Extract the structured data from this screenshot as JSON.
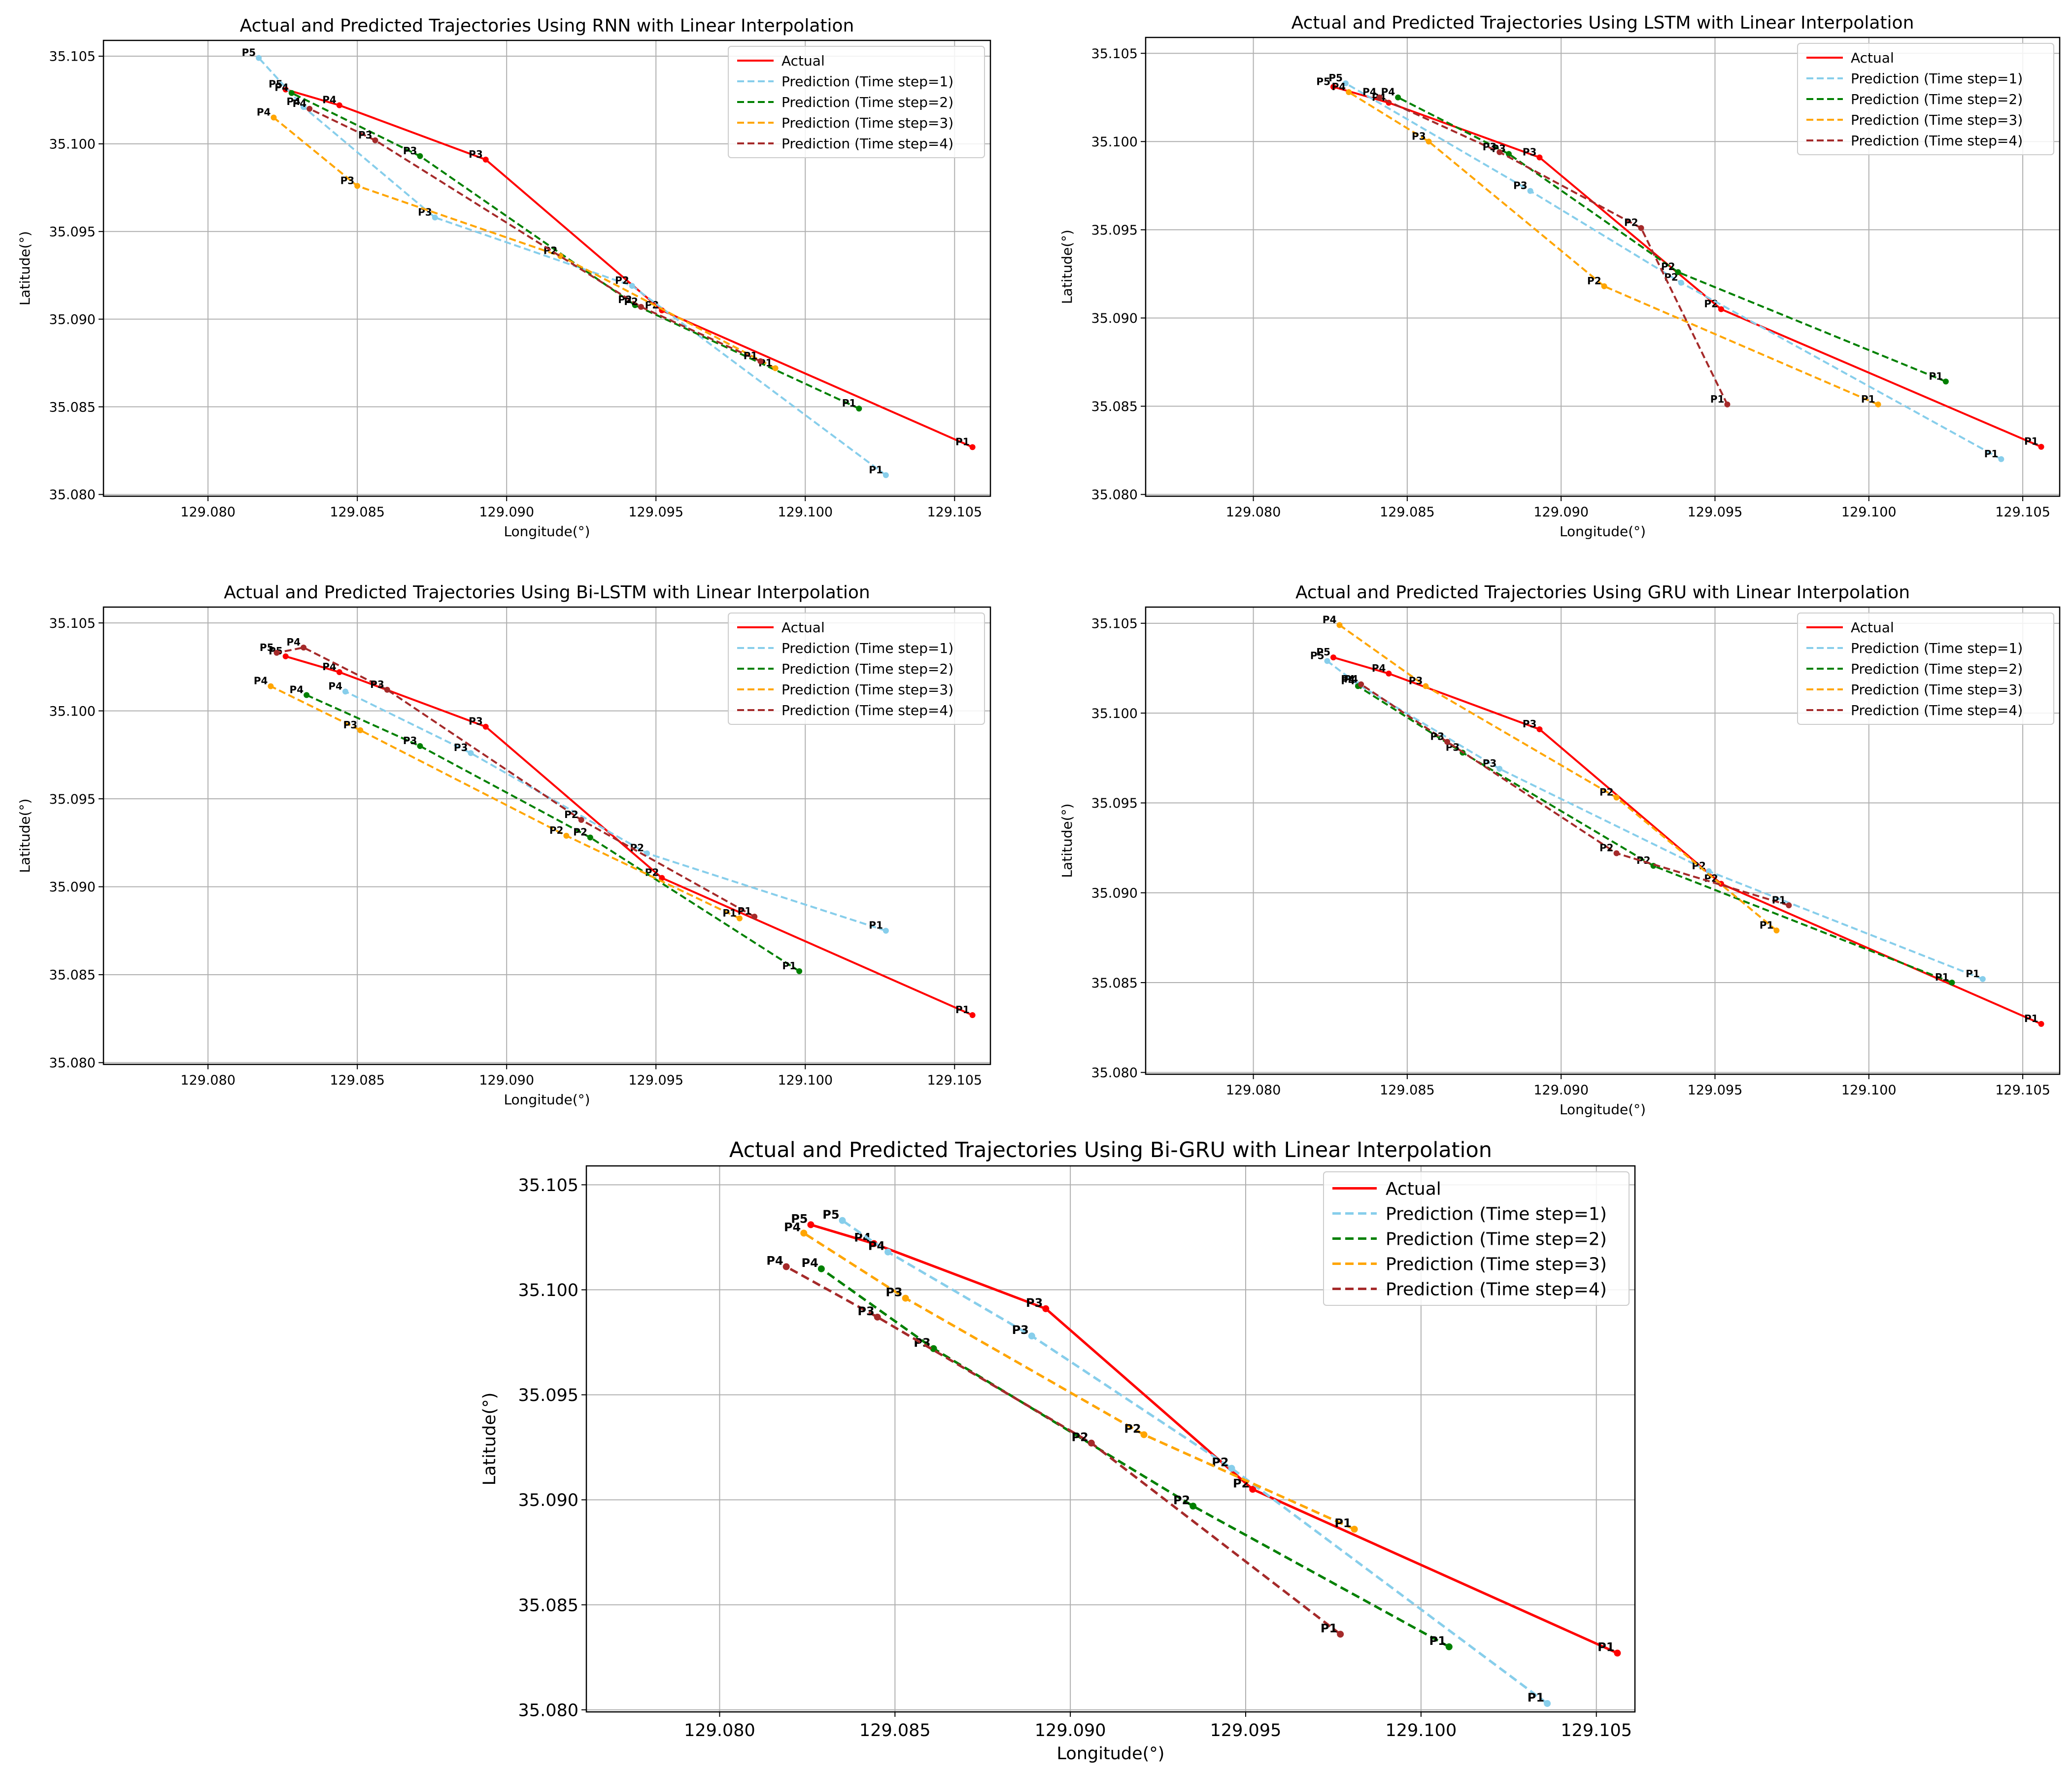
{
  "colors": {
    "actual": "#ff0000",
    "ts1": "#87ceeb",
    "ts2": "#008000",
    "ts3": "#ffa500",
    "ts4": "#a52a2a",
    "grid": "#b0b0b0"
  },
  "chart_data": [
    {
      "type": "line",
      "title": "Actual and Predicted Trajectories Using RNN with Linear Interpolation",
      "xlabel": "Longitude(°)",
      "ylabel": "Latitude(°)",
      "xlim": [
        129.0765,
        129.1062
      ],
      "ylim": [
        35.0799,
        35.1059
      ],
      "xticks": [
        "129.080",
        "129.085",
        "129.090",
        "129.095",
        "129.100",
        "129.105"
      ],
      "yticks": [
        "35.080",
        "35.085",
        "35.090",
        "35.095",
        "35.100",
        "35.105"
      ],
      "grid": true,
      "legend_position": "top-right",
      "series": [
        {
          "name": "Actual",
          "style": "solid",
          "color_key": "actual",
          "labels": [
            "P1",
            "P2",
            "P3",
            "P4",
            "P5"
          ],
          "x": [
            129.1056,
            129.0952,
            129.0893,
            129.0844,
            129.0826
          ],
          "y": [
            35.0827,
            35.0905,
            35.0991,
            35.1022,
            35.1031
          ]
        },
        {
          "name": "Prediction (Time step=1)",
          "style": "dashed",
          "color_key": "ts1",
          "labels": [
            "P1",
            "P2",
            "P3",
            "P4",
            "P5"
          ],
          "x": [
            129.1027,
            129.0942,
            129.0876,
            129.0832,
            129.0817
          ],
          "y": [
            35.0811,
            35.0919,
            35.0958,
            35.1021,
            35.1049
          ]
        },
        {
          "name": "Prediction (Time step=2)",
          "style": "dashed",
          "color_key": "ts2",
          "labels": [
            "P1",
            "P2",
            "P3",
            "P4"
          ],
          "x": [
            129.1018,
            129.0943,
            129.0871,
            129.0828
          ],
          "y": [
            35.0849,
            35.0908,
            35.0993,
            35.1029
          ]
        },
        {
          "name": "Prediction (Time step=3)",
          "style": "dashed",
          "color_key": "ts3",
          "labels": [
            "P1",
            "P2",
            "P3",
            "P4"
          ],
          "x": [
            129.099,
            129.0918,
            129.085,
            129.0822
          ],
          "y": [
            35.0872,
            35.0936,
            35.0976,
            35.1015
          ]
        },
        {
          "name": "Prediction (Time step=4)",
          "style": "dashed",
          "color_key": "ts4",
          "labels": [
            "P1",
            "P2",
            "P3",
            "P4"
          ],
          "x": [
            129.0985,
            129.0945,
            129.0856,
            129.0834
          ],
          "y": [
            35.0876,
            35.0907,
            35.1002,
            35.102
          ]
        }
      ]
    },
    {
      "type": "line",
      "title": "Actual and Predicted Trajectories Using LSTM with Linear Interpolation",
      "xlabel": "Longitude(°)",
      "ylabel": "Latitude(°)",
      "xlim": [
        129.0765,
        129.1062
      ],
      "ylim": [
        35.0799,
        35.1059
      ],
      "xticks": [
        "129.080",
        "129.085",
        "129.090",
        "129.095",
        "129.100",
        "129.105"
      ],
      "yticks": [
        "35.080",
        "35.085",
        "35.090",
        "35.095",
        "35.100",
        "35.105"
      ],
      "grid": true,
      "legend_position": "top-right",
      "series": [
        {
          "name": "Actual",
          "style": "solid",
          "color_key": "actual",
          "labels": [
            "P1",
            "P2",
            "P3",
            "P4",
            "P5"
          ],
          "x": [
            129.1056,
            129.0952,
            129.0893,
            129.0844,
            129.0826
          ],
          "y": [
            35.0827,
            35.0905,
            35.0991,
            35.1022,
            35.1031
          ]
        },
        {
          "name": "Prediction (Time step=1)",
          "style": "dashed",
          "color_key": "ts1",
          "labels": [
            "P1",
            "P2",
            "P3",
            "P5"
          ],
          "x": [
            129.1043,
            129.0939,
            129.089,
            129.083
          ],
          "y": [
            35.082,
            35.092,
            35.0972,
            35.1033
          ]
        },
        {
          "name": "Prediction (Time step=2)",
          "style": "dashed",
          "color_key": "ts2",
          "labels": [
            "P1",
            "P2",
            "P3",
            "P4"
          ],
          "x": [
            129.1025,
            129.0938,
            129.0883,
            129.0847
          ],
          "y": [
            35.0864,
            35.0926,
            35.0993,
            35.1025
          ]
        },
        {
          "name": "Prediction (Time step=3)",
          "style": "dashed",
          "color_key": "ts3",
          "labels": [
            "P1",
            "P2",
            "P3",
            "P4"
          ],
          "x": [
            129.1003,
            129.0914,
            129.0857,
            129.0831
          ],
          "y": [
            35.0851,
            35.0918,
            35.1,
            35.1028
          ]
        },
        {
          "name": "Prediction (Time step=4)",
          "style": "dashed",
          "color_key": "ts4",
          "labels": [
            "P1",
            "P2",
            "P3",
            "P4"
          ],
          "x": [
            129.0954,
            129.0926,
            129.088,
            129.0841
          ],
          "y": [
            35.0851,
            35.0951,
            35.0994,
            35.1025
          ]
        }
      ]
    },
    {
      "type": "line",
      "title": "Actual and Predicted Trajectories Using Bi-LSTM with Linear Interpolation",
      "xlabel": "Longitude(°)",
      "ylabel": "Latitude(°)",
      "xlim": [
        129.0765,
        129.1062
      ],
      "ylim": [
        35.0799,
        35.1059
      ],
      "xticks": [
        "129.080",
        "129.085",
        "129.090",
        "129.095",
        "129.100",
        "129.105"
      ],
      "yticks": [
        "35.080",
        "35.085",
        "35.090",
        "35.095",
        "35.100",
        "35.105"
      ],
      "grid": true,
      "legend_position": "top-right",
      "series": [
        {
          "name": "Actual",
          "style": "solid",
          "color_key": "actual",
          "labels": [
            "P1",
            "P2",
            "P3",
            "P4",
            "P5"
          ],
          "x": [
            129.1056,
            129.0952,
            129.0893,
            129.0844,
            129.0826
          ],
          "y": [
            35.0827,
            35.0905,
            35.0991,
            35.1022,
            35.1031
          ]
        },
        {
          "name": "Prediction (Time step=1)",
          "style": "dashed",
          "color_key": "ts1",
          "labels": [
            "P1",
            "P2",
            "P3",
            "P4"
          ],
          "x": [
            129.1027,
            129.0947,
            129.0888,
            129.0846
          ],
          "y": [
            35.0875,
            35.0919,
            35.0976,
            35.1011
          ]
        },
        {
          "name": "Prediction (Time step=2)",
          "style": "dashed",
          "color_key": "ts2",
          "labels": [
            "P1",
            "P2",
            "P3",
            "P4"
          ],
          "x": [
            129.0998,
            129.0928,
            129.0871,
            129.0833
          ],
          "y": [
            35.0852,
            35.0928,
            35.098,
            35.1009
          ]
        },
        {
          "name": "Prediction (Time step=3)",
          "style": "dashed",
          "color_key": "ts3",
          "labels": [
            "P1",
            "P2",
            "P3",
            "P4"
          ],
          "x": [
            129.0978,
            129.092,
            129.0851,
            129.0821
          ],
          "y": [
            35.0882,
            35.0929,
            35.0989,
            35.1014
          ]
        },
        {
          "name": "Prediction (Time step=4)",
          "style": "dashed",
          "color_key": "ts4",
          "labels": [
            "P1",
            "P2",
            "P3",
            "P4",
            "P5"
          ],
          "x": [
            129.0983,
            129.0925,
            129.086,
            129.0832,
            129.0823
          ],
          "y": [
            35.0883,
            35.0938,
            35.1012,
            35.1036,
            35.1033
          ]
        }
      ]
    },
    {
      "type": "line",
      "title": "Actual and Predicted Trajectories Using GRU with Linear Interpolation",
      "xlabel": "Longitude(°)",
      "ylabel": "Latitude(°)",
      "xlim": [
        129.0765,
        129.1062
      ],
      "ylim": [
        35.0799,
        35.1059
      ],
      "xticks": [
        "129.080",
        "129.085",
        "129.090",
        "129.095",
        "129.100",
        "129.105"
      ],
      "yticks": [
        "35.080",
        "35.085",
        "35.090",
        "35.095",
        "35.100",
        "35.105"
      ],
      "grid": true,
      "legend_position": "top-right",
      "series": [
        {
          "name": "Actual",
          "style": "solid",
          "color_key": "actual",
          "labels": [
            "P1",
            "P2",
            "P3",
            "P4",
            "P5"
          ],
          "x": [
            129.1056,
            129.0952,
            129.0893,
            129.0844,
            129.0826
          ],
          "y": [
            35.0827,
            35.0905,
            35.0991,
            35.1022,
            35.1031
          ]
        },
        {
          "name": "Prediction (Time step=1)",
          "style": "dashed",
          "color_key": "ts1",
          "labels": [
            "P1",
            "P2",
            "P3",
            "P4",
            "P5"
          ],
          "x": [
            129.1037,
            129.0948,
            129.088,
            129.0834,
            129.0824
          ],
          "y": [
            35.0852,
            35.0912,
            35.0969,
            35.1016,
            35.1029
          ]
        },
        {
          "name": "Prediction (Time step=2)",
          "style": "dashed",
          "color_key": "ts2",
          "labels": [
            "P1",
            "P2",
            "P3",
            "P4"
          ],
          "x": [
            129.1027,
            129.093,
            129.0868,
            129.0834
          ],
          "y": [
            35.085,
            35.0915,
            35.0978,
            35.1015
          ]
        },
        {
          "name": "Prediction (Time step=3)",
          "style": "dashed",
          "color_key": "ts3",
          "labels": [
            "P1",
            "P2",
            "P3",
            "P4"
          ],
          "x": [
            129.097,
            129.0918,
            129.0856,
            129.0828
          ],
          "y": [
            35.0879,
            35.0953,
            35.1015,
            35.1049
          ]
        },
        {
          "name": "Prediction (Time step=4)",
          "style": "dashed",
          "color_key": "ts4",
          "labels": [
            "P1",
            "P2",
            "P3",
            "P4"
          ],
          "x": [
            129.0974,
            129.0918,
            129.0863,
            129.0835
          ],
          "y": [
            35.0893,
            35.0922,
            35.0984,
            35.1016
          ]
        }
      ]
    },
    {
      "type": "line",
      "title": "Actual and Predicted Trajectories Using Bi-GRU with Linear Interpolation",
      "xlabel": "Longitude(°)",
      "ylabel": "Latitude(°)",
      "xlim": [
        129.0762,
        129.1061
      ],
      "ylim": [
        35.0799,
        35.1059
      ],
      "xticks": [
        "129.080",
        "129.085",
        "129.090",
        "129.095",
        "129.100",
        "129.105"
      ],
      "yticks": [
        "35.080",
        "35.085",
        "35.090",
        "35.095",
        "35.100",
        "35.105"
      ],
      "grid": true,
      "legend_position": "top-right",
      "series": [
        {
          "name": "Actual",
          "style": "solid",
          "color_key": "actual",
          "labels": [
            "P1",
            "P2",
            "P3",
            "P4",
            "P5"
          ],
          "x": [
            129.1056,
            129.0952,
            129.0893,
            129.0844,
            129.0826
          ],
          "y": [
            35.0827,
            35.0905,
            35.0991,
            35.1022,
            35.1031
          ]
        },
        {
          "name": "Prediction (Time step=1)",
          "style": "dashed",
          "color_key": "ts1",
          "labels": [
            "P1",
            "P2",
            "P3",
            "P4",
            "P5"
          ],
          "x": [
            129.1036,
            129.0946,
            129.0889,
            129.0848,
            129.0835
          ],
          "y": [
            35.0803,
            35.0915,
            35.0978,
            35.1018,
            35.1033
          ]
        },
        {
          "name": "Prediction (Time step=2)",
          "style": "dashed",
          "color_key": "ts2",
          "labels": [
            "P1",
            "P2",
            "P3",
            "P4"
          ],
          "x": [
            129.1008,
            129.0935,
            129.0861,
            129.0829
          ],
          "y": [
            35.083,
            35.0897,
            35.0972,
            35.101
          ]
        },
        {
          "name": "Prediction (Time step=3)",
          "style": "dashed",
          "color_key": "ts3",
          "labels": [
            "P1",
            "P2",
            "P3",
            "P4"
          ],
          "x": [
            129.0981,
            129.0921,
            129.0853,
            129.0824
          ],
          "y": [
            35.0886,
            35.0931,
            35.0996,
            35.1027
          ]
        },
        {
          "name": "Prediction (Time step=4)",
          "style": "dashed",
          "color_key": "ts4",
          "labels": [
            "P1",
            "P2",
            "P3",
            "P4"
          ],
          "x": [
            129.0977,
            129.0906,
            129.0845,
            129.0819
          ],
          "y": [
            35.0836,
            35.0927,
            35.0987,
            35.1011
          ]
        }
      ]
    }
  ]
}
